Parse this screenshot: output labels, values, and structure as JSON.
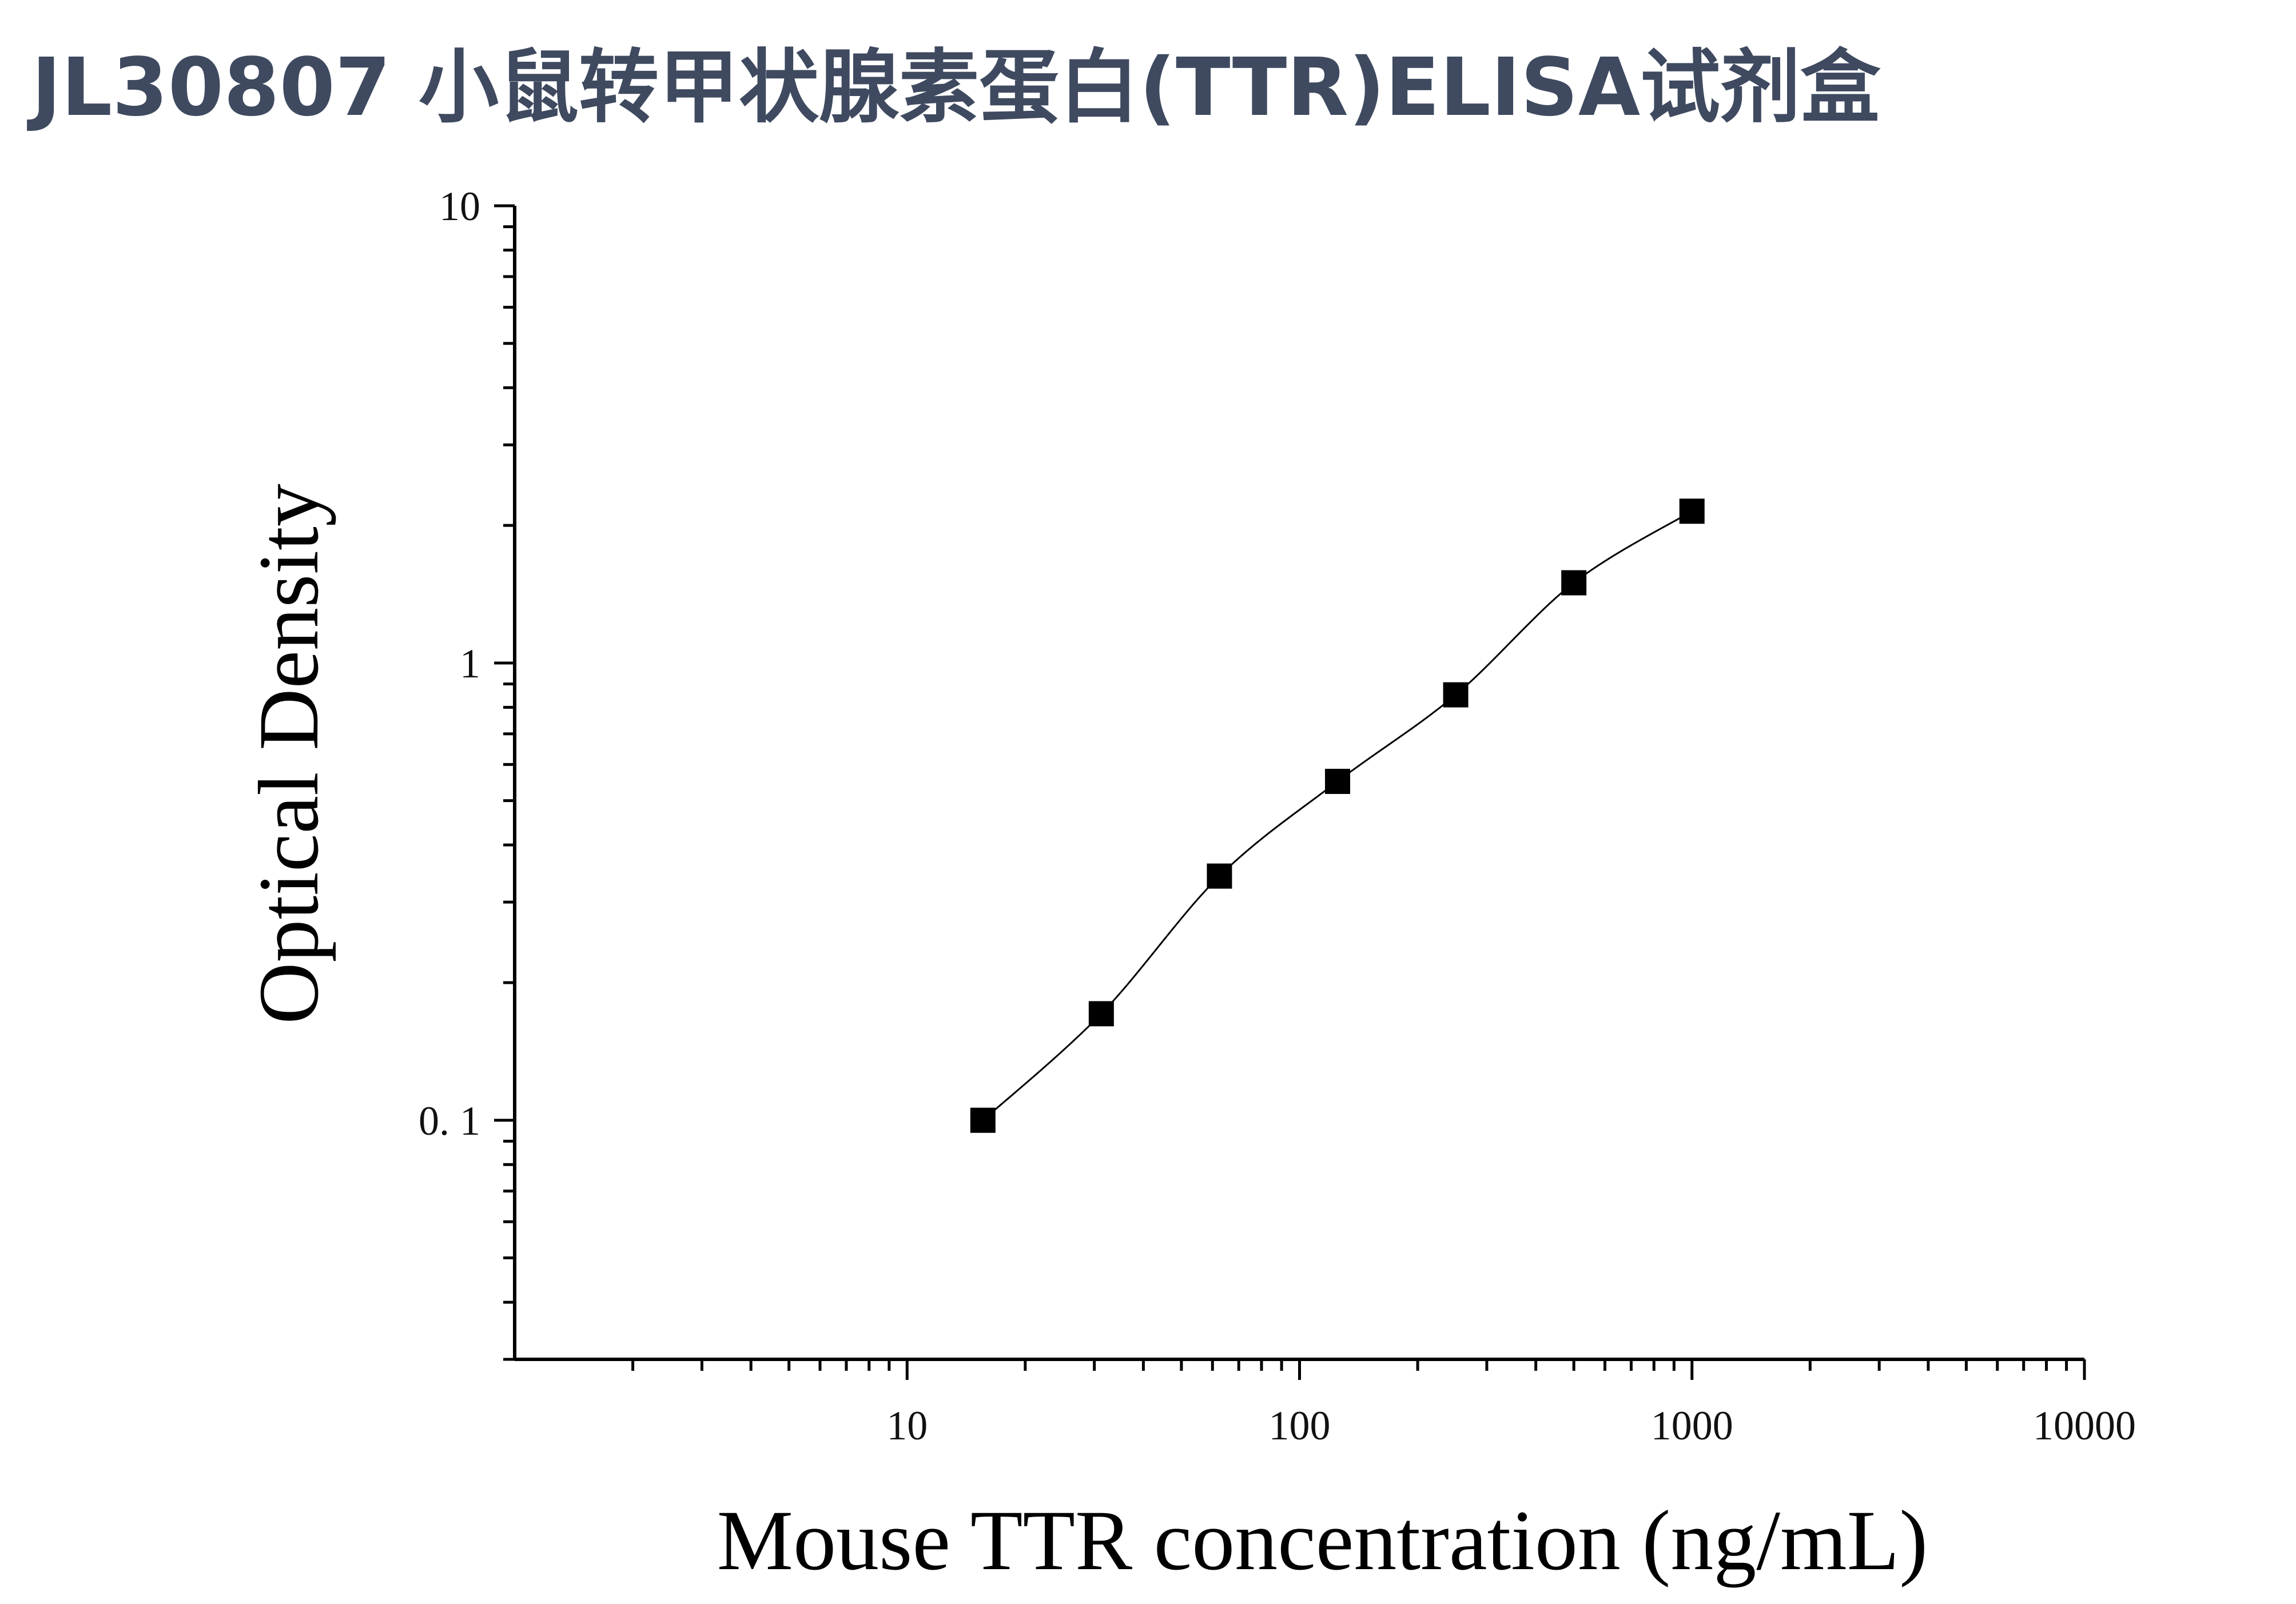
{
  "title": "JL30807 小鼠转甲状腺素蛋白(TTR)ELISA试剂盒",
  "chart_data": {
    "type": "scatter",
    "title": "JL30807 小鼠转甲状腺素蛋白(TTR)ELISA试剂盒",
    "xlabel": "Mouse TTR concentration (ng/mL)",
    "ylabel": "Optical Density",
    "x_scale": "log",
    "y_scale": "log",
    "xlim": [
      1,
      10000
    ],
    "ylim": [
      0.03,
      10
    ],
    "x_tick_labels": [
      "10",
      "100",
      "1000",
      "10000"
    ],
    "y_tick_labels": [
      "0. 1",
      "1",
      "10"
    ],
    "grid": false,
    "legend": "none",
    "series": [
      {
        "x": [
          15.6,
          31.25,
          62.5,
          125,
          250,
          500,
          1000
        ],
        "y": [
          0.1,
          0.171,
          0.342,
          0.551,
          0.852,
          1.498,
          2.148
        ]
      }
    ],
    "marker_color": "#000000",
    "line_color": "#000000"
  }
}
